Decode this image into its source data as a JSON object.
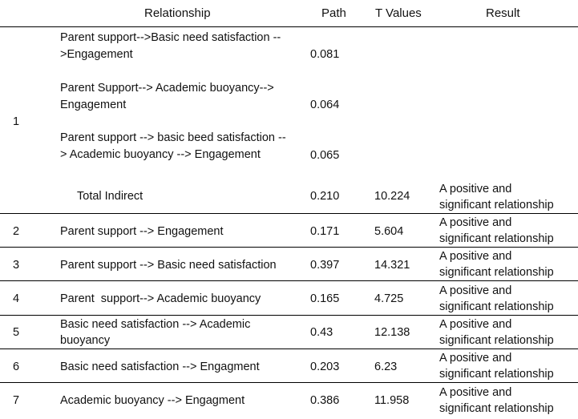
{
  "headers": {
    "relationship": "Relationship",
    "path": "Path",
    "t_values": "T Values",
    "result": "Result"
  },
  "row1": {
    "no": "1",
    "sub": [
      {
        "line1": "Parent support-->Basic need satisfaction --",
        "line2": ">Engagement",
        "path": "0.081"
      },
      {
        "line1": "Parent Support--> Academic buoyancy-->",
        "line2": "Engagement",
        "path": "0.064"
      },
      {
        "line1": "Parent support --> basic beed satisfaction --",
        "line2": "> Academic buoyancy --> Engagement",
        "path": "0.065"
      }
    ],
    "total": {
      "label": "Total Indirect",
      "path": "0.210",
      "t": "10.224",
      "result_l1": "A positive and",
      "result_l2": "significant relationship"
    }
  },
  "rows": [
    {
      "no": "2",
      "rel1": "Parent support --> Engagement",
      "rel2": "",
      "path": "0.171",
      "t": "5.604",
      "result_l1": "A positive and",
      "result_l2": "significant relationship"
    },
    {
      "no": "3",
      "rel1": "Parent support --> Basic need satisfaction",
      "rel2": "",
      "path": "0.397",
      "t": "14.321",
      "result_l1": "A positive and",
      "result_l2": "significant relationship"
    },
    {
      "no": "4",
      "rel1": "Parent  support--> Academic buoyancy",
      "rel2": "",
      "path": "0.165",
      "t": "4.725",
      "result_l1": "A positive and",
      "result_l2": "significant relationship"
    },
    {
      "no": "5",
      "rel1": "Basic need satisfaction --> Academic",
      "rel2": "buoyancy",
      "path": "0.43",
      "t": "12.138",
      "result_l1": "A positive and",
      "result_l2": "significant relationship"
    },
    {
      "no": "6",
      "rel1": "Basic need satisfaction --> Engagment",
      "rel2": "",
      "path": "0.203",
      "t": "6.23",
      "result_l1": "A positive and",
      "result_l2": "significant relationship"
    },
    {
      "no": "7",
      "rel1": "Academic buoyancy --> Engagment",
      "rel2": "",
      "path": "0.386",
      "t": "11.958",
      "result_l1": "A positive and",
      "result_l2": "significant relationship"
    }
  ]
}
